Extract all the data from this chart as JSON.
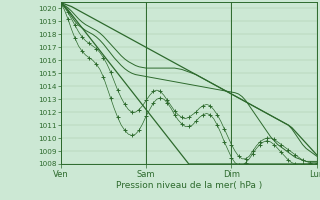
{
  "xlabel": "Pression niveau de la mer( hPa )",
  "bg_color": "#cce8d4",
  "grid_color": "#a8c8aa",
  "line_color": "#2d6a2d",
  "ylim": [
    1008,
    1020.5
  ],
  "yticks": [
    1008,
    1009,
    1010,
    1011,
    1012,
    1013,
    1014,
    1015,
    1016,
    1017,
    1018,
    1019,
    1020
  ],
  "xtick_labels": [
    "Ven",
    "Sam",
    "Dim",
    "Lun"
  ],
  "xtick_positions": [
    0,
    24,
    48,
    72
  ],
  "num_points": 73,
  "line_upper_straight": [
    1020.4,
    1020.35,
    1020.25,
    1020.15,
    1020.0,
    1019.85,
    1019.7,
    1019.55,
    1019.4,
    1019.25,
    1019.1,
    1018.95,
    1018.8,
    1018.65,
    1018.5,
    1018.35,
    1018.2,
    1018.05,
    1017.9,
    1017.75,
    1017.6,
    1017.45,
    1017.3,
    1017.15,
    1017.0,
    1016.85,
    1016.7,
    1016.55,
    1016.4,
    1016.25,
    1016.1,
    1015.95,
    1015.8,
    1015.65,
    1015.5,
    1015.35,
    1015.2,
    1015.05,
    1014.9,
    1014.75,
    1014.6,
    1014.45,
    1014.3,
    1014.15,
    1014.0,
    1013.85,
    1013.7,
    1013.55,
    1013.4,
    1013.25,
    1013.1,
    1012.95,
    1012.8,
    1012.65,
    1012.5,
    1012.35,
    1012.2,
    1012.05,
    1011.9,
    1011.75,
    1011.6,
    1011.45,
    1011.3,
    1011.15,
    1011.0,
    1010.8,
    1010.5,
    1010.2,
    1009.9,
    1009.6,
    1009.3,
    1009.0,
    1008.7
  ],
  "line_lower_straight": [
    1020.4,
    1020.2,
    1019.9,
    1019.55,
    1019.2,
    1018.85,
    1018.5,
    1018.15,
    1017.8,
    1017.45,
    1017.1,
    1016.75,
    1016.4,
    1016.05,
    1015.7,
    1015.35,
    1015.0,
    1014.65,
    1014.3,
    1013.95,
    1013.6,
    1013.25,
    1012.9,
    1012.55,
    1012.2,
    1011.85,
    1011.5,
    1011.15,
    1010.8,
    1010.45,
    1010.1,
    1009.75,
    1009.4,
    1009.05,
    1008.7,
    1008.35,
    1008.0,
    1008.0,
    1008.0,
    1008.0,
    1008.0,
    1008.0,
    1008.0,
    1008.0,
    1008.0,
    1008.0,
    1008.0,
    1008.0,
    1008.0,
    1008.0,
    1008.0,
    1008.0,
    1008.0,
    1008.0,
    1008.0,
    1008.0,
    1008.0,
    1008.0,
    1008.0,
    1008.0,
    1008.0,
    1008.0,
    1008.0,
    1008.0,
    1008.0,
    1008.0,
    1008.0,
    1008.0,
    1008.0,
    1008.0,
    1008.0,
    1008.0,
    1008.0
  ],
  "line_dot1": [
    1020.4,
    1020.1,
    1019.7,
    1019.2,
    1018.7,
    1018.2,
    1017.8,
    1017.5,
    1017.3,
    1017.1,
    1016.9,
    1016.6,
    1016.2,
    1015.7,
    1015.1,
    1014.4,
    1013.7,
    1013.1,
    1012.6,
    1012.2,
    1012.0,
    1012.0,
    1012.2,
    1012.5,
    1012.9,
    1013.3,
    1013.6,
    1013.7,
    1013.6,
    1013.3,
    1012.9,
    1012.5,
    1012.1,
    1011.8,
    1011.6,
    1011.5,
    1011.6,
    1011.8,
    1012.0,
    1012.3,
    1012.5,
    1012.6,
    1012.5,
    1012.2,
    1011.8,
    1011.3,
    1010.7,
    1010.1,
    1009.5,
    1009.0,
    1008.6,
    1008.4,
    1008.4,
    1008.6,
    1009.0,
    1009.4,
    1009.7,
    1009.9,
    1010.0,
    1010.0,
    1009.9,
    1009.7,
    1009.5,
    1009.3,
    1009.1,
    1008.9,
    1008.7,
    1008.5,
    1008.3,
    1008.2,
    1008.1,
    1008.1,
    1008.1
  ],
  "line_dot2": [
    1020.4,
    1019.9,
    1019.2,
    1018.4,
    1017.7,
    1017.1,
    1016.7,
    1016.4,
    1016.2,
    1016.0,
    1015.7,
    1015.3,
    1014.7,
    1013.9,
    1013.1,
    1012.3,
    1011.6,
    1011.0,
    1010.6,
    1010.3,
    1010.2,
    1010.3,
    1010.6,
    1011.1,
    1011.7,
    1012.2,
    1012.7,
    1013.0,
    1013.1,
    1013.0,
    1012.7,
    1012.3,
    1011.8,
    1011.4,
    1011.1,
    1010.9,
    1010.9,
    1011.0,
    1011.3,
    1011.6,
    1011.8,
    1011.9,
    1011.8,
    1011.5,
    1011.0,
    1010.4,
    1009.7,
    1009.1,
    1008.5,
    1008.1,
    1007.9,
    1007.9,
    1008.1,
    1008.4,
    1008.8,
    1009.2,
    1009.5,
    1009.7,
    1009.8,
    1009.7,
    1009.5,
    1009.2,
    1008.9,
    1008.6,
    1008.3,
    1008.1,
    1008.0,
    1008.0,
    1008.0,
    1008.0,
    1008.0,
    1008.0,
    1008.0
  ],
  "line_mid1": [
    1020.4,
    1020.15,
    1019.8,
    1019.4,
    1019.0,
    1018.7,
    1018.5,
    1018.3,
    1018.15,
    1018.0,
    1017.8,
    1017.55,
    1017.25,
    1016.9,
    1016.55,
    1016.2,
    1015.9,
    1015.6,
    1015.35,
    1015.15,
    1015.0,
    1014.9,
    1014.85,
    1014.8,
    1014.75,
    1014.7,
    1014.65,
    1014.6,
    1014.55,
    1014.5,
    1014.45,
    1014.4,
    1014.35,
    1014.3,
    1014.25,
    1014.2,
    1014.15,
    1014.1,
    1014.05,
    1014.0,
    1013.95,
    1013.9,
    1013.85,
    1013.8,
    1013.75,
    1013.7,
    1013.65,
    1013.6,
    1013.55,
    1013.5,
    1013.4,
    1013.2,
    1012.9,
    1012.5,
    1012.1,
    1011.7,
    1011.3,
    1010.9,
    1010.5,
    1010.1,
    1009.8,
    1009.5,
    1009.3,
    1009.1,
    1008.9,
    1008.7,
    1008.5,
    1008.4,
    1008.3,
    1008.2,
    1008.2,
    1008.2,
    1008.2
  ],
  "line_mid2": [
    1020.4,
    1020.25,
    1020.05,
    1019.8,
    1019.5,
    1019.2,
    1018.95,
    1018.75,
    1018.6,
    1018.45,
    1018.3,
    1018.1,
    1017.85,
    1017.55,
    1017.25,
    1016.95,
    1016.65,
    1016.35,
    1016.1,
    1015.9,
    1015.75,
    1015.6,
    1015.5,
    1015.45,
    1015.4,
    1015.4,
    1015.4,
    1015.4,
    1015.4,
    1015.4,
    1015.4,
    1015.4,
    1015.4,
    1015.35,
    1015.3,
    1015.2,
    1015.1,
    1015.0,
    1014.9,
    1014.75,
    1014.6,
    1014.45,
    1014.3,
    1014.15,
    1014.0,
    1013.85,
    1013.7,
    1013.55,
    1013.4,
    1013.25,
    1013.1,
    1012.95,
    1012.8,
    1012.65,
    1012.5,
    1012.35,
    1012.2,
    1012.05,
    1011.9,
    1011.75,
    1011.6,
    1011.45,
    1011.3,
    1011.15,
    1011.0,
    1010.7,
    1010.3,
    1009.9,
    1009.5,
    1009.2,
    1009.0,
    1008.8,
    1008.6
  ]
}
